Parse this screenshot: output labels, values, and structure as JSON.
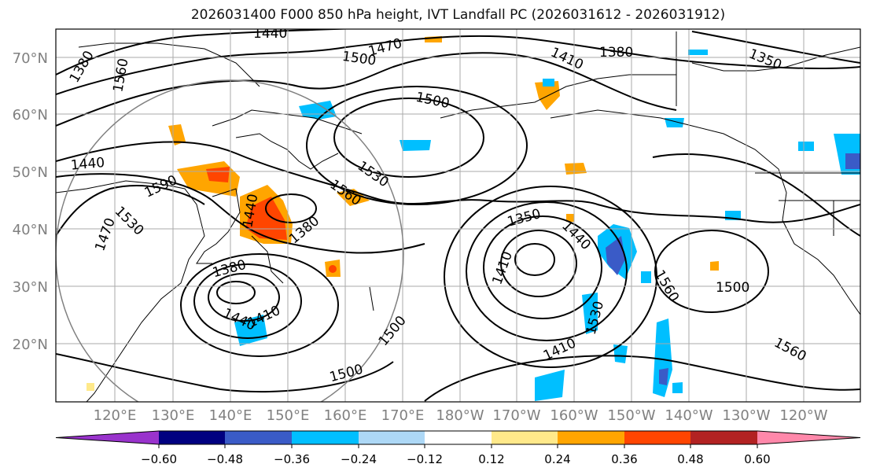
{
  "title": "2026031400 F000 850 hPa height, IVT Landfall PC (2026031612 - 2026031912)",
  "map": {
    "lat_labels": [
      "70°N",
      "60°N",
      "50°N",
      "40°N",
      "30°N",
      "20°N"
    ],
    "lon_labels": [
      "120°E",
      "130°E",
      "140°E",
      "150°E",
      "160°E",
      "170°E",
      "180°W",
      "170°W",
      "160°W",
      "150°W",
      "140°W",
      "130°W",
      "120°W"
    ],
    "contour_labels": [
      "1440",
      "1470",
      "1500",
      "1380",
      "1410",
      "1380",
      "1350",
      "1560",
      "1500",
      "1440",
      "1590",
      "1530",
      "1560",
      "1530",
      "1470",
      "1440",
      "1380",
      "1350",
      "1440",
      "1410",
      "1380",
      "1410",
      "1440",
      "1410",
      "1530",
      "1560",
      "1500",
      "1500",
      "1500",
      "1560"
    ],
    "grid": true,
    "range_circle": true
  },
  "colorbar": {
    "tick_labels": [
      "−0.60",
      "−0.48",
      "−0.36",
      "−0.24",
      "−0.12",
      "0.12",
      "0.24",
      "0.36",
      "0.48",
      "0.60"
    ],
    "colors": [
      "#9933cc",
      "#000080",
      "#3a5bc7",
      "#00bfff",
      "#add8f6",
      "#ffffff",
      "#ffe98a",
      "#ffa500",
      "#ff4500",
      "#b22222",
      "#ff88aa"
    ],
    "extend": "both"
  }
}
